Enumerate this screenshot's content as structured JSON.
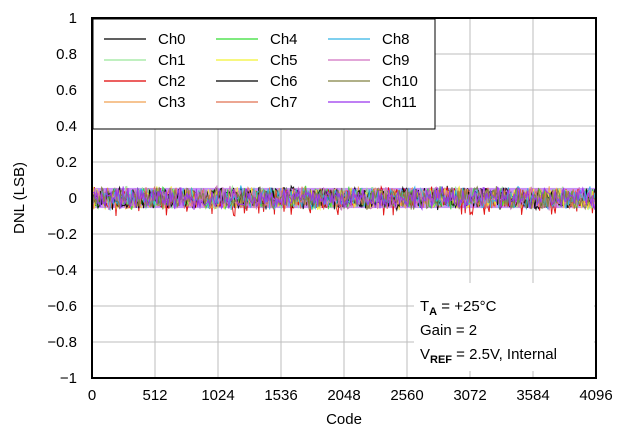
{
  "chart_data": {
    "type": "line",
    "xlabel": "Code",
    "ylabel": "DNL (LSB)",
    "xlim": [
      0,
      4096
    ],
    "ylim": [
      -1,
      1
    ],
    "x_ticks": [
      "0",
      "512",
      "1024",
      "1536",
      "2048",
      "2560",
      "3072",
      "3584",
      "4096"
    ],
    "y_ticks": [
      "1",
      "0.8",
      "0.6",
      "0.4",
      "0.2",
      "0",
      "−0.2",
      "−0.4",
      "−0.6",
      "−0.8",
      "−1"
    ],
    "grid": true,
    "legend_position": "top-left",
    "annotation": {
      "line1_main": "T",
      "line1_sub": "A",
      "line1_rest": " = +25°C",
      "line2": "Gain = 2",
      "line3_main": "V",
      "line3_sub": "REF",
      "line3_rest": " = 2.5V, Internal"
    },
    "band": {
      "upper": 0.07,
      "lower": -0.07,
      "min_spike": -0.1
    },
    "series": [
      {
        "name": "Ch0",
        "color": "#000000",
        "x": [
          0,
          4096
        ],
        "y": [
          0.0,
          0.0
        ]
      },
      {
        "name": "Ch1",
        "color": "#9be89b",
        "x": [
          0,
          4096
        ],
        "y": [
          0.0,
          0.0
        ]
      },
      {
        "name": "Ch2",
        "color": "#e00000",
        "x": [
          0,
          4096
        ],
        "y": [
          0.0,
          0.0
        ]
      },
      {
        "name": "Ch3",
        "color": "#f0a050",
        "x": [
          0,
          4096
        ],
        "y": [
          0.0,
          0.0
        ]
      },
      {
        "name": "Ch4",
        "color": "#33dd33",
        "x": [
          0,
          4096
        ],
        "y": [
          0.0,
          0.0
        ]
      },
      {
        "name": "Ch5",
        "color": "#f2f233",
        "x": [
          0,
          4096
        ],
        "y": [
          0.0,
          0.0
        ]
      },
      {
        "name": "Ch6",
        "color": "#000000",
        "x": [
          0,
          4096
        ],
        "y": [
          0.0,
          0.0
        ]
      },
      {
        "name": "Ch7",
        "color": "#e07050",
        "x": [
          0,
          4096
        ],
        "y": [
          0.0,
          0.0
        ]
      },
      {
        "name": "Ch8",
        "color": "#33b5e5",
        "x": [
          0,
          4096
        ],
        "y": [
          0.0,
          0.0
        ]
      },
      {
        "name": "Ch9",
        "color": "#d070c0",
        "x": [
          0,
          4096
        ],
        "y": [
          0.0,
          0.0
        ]
      },
      {
        "name": "Ch10",
        "color": "#808040",
        "x": [
          0,
          4096
        ],
        "y": [
          0.0,
          0.0
        ]
      },
      {
        "name": "Ch11",
        "color": "#9933ee",
        "x": [
          0,
          4096
        ],
        "y": [
          0.0,
          0.0
        ]
      }
    ]
  }
}
